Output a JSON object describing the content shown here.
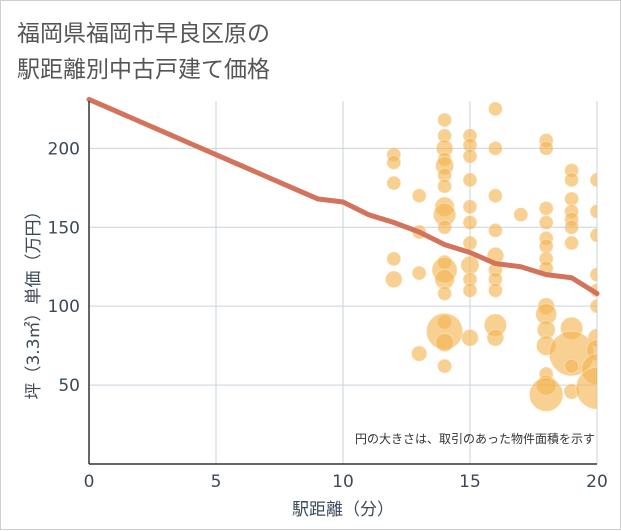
{
  "chart_data": {
    "type": "scatter",
    "title_lines": [
      "福岡県福岡市早良区原の",
      "駅距離別中古戸建て価格"
    ],
    "xlabel": "駅距離（分）",
    "ylabel": "坪（3.3㎡）単価（万円）",
    "xlim": [
      0,
      20
    ],
    "ylim": [
      0,
      230
    ],
    "x_ticks": [
      0,
      5,
      10,
      15,
      20
    ],
    "y_ticks": [
      50,
      100,
      150,
      200
    ],
    "note": "円の大きさは、取引のあった物件面積を示す",
    "colors": {
      "bubble": "#f3b34f",
      "line": "#d4735b",
      "grid": "#c9d3dc",
      "axis": "#333333"
    },
    "trend_line": {
      "x": [
        0,
        1,
        2,
        3,
        4,
        5,
        6,
        7,
        8,
        9,
        10,
        11,
        12,
        13,
        14,
        15,
        16,
        17,
        18,
        19,
        20
      ],
      "y": [
        231,
        224,
        217,
        210,
        203,
        196,
        189,
        182,
        175,
        168,
        166,
        158,
        153,
        147,
        139,
        134,
        127,
        125,
        120,
        118,
        108
      ]
    },
    "bubbles": [
      {
        "x": 12,
        "y": 196,
        "s": 1
      },
      {
        "x": 12,
        "y": 191,
        "s": 1
      },
      {
        "x": 12,
        "y": 178,
        "s": 1
      },
      {
        "x": 12,
        "y": 130,
        "s": 1
      },
      {
        "x": 12,
        "y": 117,
        "s": 1.2
      },
      {
        "x": 13,
        "y": 170,
        "s": 1
      },
      {
        "x": 13,
        "y": 147,
        "s": 1
      },
      {
        "x": 13,
        "y": 121,
        "s": 1
      },
      {
        "x": 13,
        "y": 70,
        "s": 1.1
      },
      {
        "x": 14,
        "y": 218,
        "s": 1
      },
      {
        "x": 14,
        "y": 208,
        "s": 1
      },
      {
        "x": 14,
        "y": 200,
        "s": 1.2
      },
      {
        "x": 14,
        "y": 193,
        "s": 1
      },
      {
        "x": 14,
        "y": 189,
        "s": 1.3
      },
      {
        "x": 14,
        "y": 183,
        "s": 1
      },
      {
        "x": 14,
        "y": 176,
        "s": 1
      },
      {
        "x": 14,
        "y": 163,
        "s": 1.4
      },
      {
        "x": 14,
        "y": 158,
        "s": 1.6
      },
      {
        "x": 14,
        "y": 150,
        "s": 1
      },
      {
        "x": 14,
        "y": 128,
        "s": 1
      },
      {
        "x": 14,
        "y": 123,
        "s": 1.8
      },
      {
        "x": 14,
        "y": 117,
        "s": 1.4
      },
      {
        "x": 14,
        "y": 108,
        "s": 1
      },
      {
        "x": 14,
        "y": 90,
        "s": 1
      },
      {
        "x": 14,
        "y": 84,
        "s": 2.6
      },
      {
        "x": 14,
        "y": 77,
        "s": 1.3
      },
      {
        "x": 14,
        "y": 62,
        "s": 1
      },
      {
        "x": 15,
        "y": 208,
        "s": 1
      },
      {
        "x": 15,
        "y": 202,
        "s": 1
      },
      {
        "x": 15,
        "y": 195,
        "s": 1
      },
      {
        "x": 15,
        "y": 180,
        "s": 1
      },
      {
        "x": 15,
        "y": 163,
        "s": 1
      },
      {
        "x": 15,
        "y": 153,
        "s": 1
      },
      {
        "x": 15,
        "y": 140,
        "s": 1
      },
      {
        "x": 15,
        "y": 126,
        "s": 1.3
      },
      {
        "x": 15,
        "y": 117,
        "s": 1
      },
      {
        "x": 15,
        "y": 110,
        "s": 1
      },
      {
        "x": 15,
        "y": 80,
        "s": 1.2
      },
      {
        "x": 16,
        "y": 225,
        "s": 1
      },
      {
        "x": 16,
        "y": 200,
        "s": 1
      },
      {
        "x": 16,
        "y": 170,
        "s": 1
      },
      {
        "x": 16,
        "y": 148,
        "s": 1
      },
      {
        "x": 16,
        "y": 132,
        "s": 1.2
      },
      {
        "x": 16,
        "y": 123,
        "s": 1
      },
      {
        "x": 16,
        "y": 117,
        "s": 1
      },
      {
        "x": 16,
        "y": 110,
        "s": 1
      },
      {
        "x": 16,
        "y": 88,
        "s": 1.6
      },
      {
        "x": 16,
        "y": 80,
        "s": 1.2
      },
      {
        "x": 17,
        "y": 158,
        "s": 1
      },
      {
        "x": 18,
        "y": 205,
        "s": 1
      },
      {
        "x": 18,
        "y": 200,
        "s": 1
      },
      {
        "x": 18,
        "y": 162,
        "s": 1
      },
      {
        "x": 18,
        "y": 153,
        "s": 1
      },
      {
        "x": 18,
        "y": 143,
        "s": 1
      },
      {
        "x": 18,
        "y": 138,
        "s": 1
      },
      {
        "x": 18,
        "y": 130,
        "s": 1
      },
      {
        "x": 18,
        "y": 124,
        "s": 1
      },
      {
        "x": 18,
        "y": 100,
        "s": 1.2
      },
      {
        "x": 18,
        "y": 95,
        "s": 1.5
      },
      {
        "x": 18,
        "y": 85,
        "s": 1.3
      },
      {
        "x": 18,
        "y": 75,
        "s": 1.4
      },
      {
        "x": 18,
        "y": 57,
        "s": 1
      },
      {
        "x": 18,
        "y": 50,
        "s": 1.4
      },
      {
        "x": 18,
        "y": 44,
        "s": 2.4
      },
      {
        "x": 19,
        "y": 186,
        "s": 1
      },
      {
        "x": 19,
        "y": 180,
        "s": 1
      },
      {
        "x": 19,
        "y": 168,
        "s": 1
      },
      {
        "x": 19,
        "y": 160,
        "s": 1
      },
      {
        "x": 19,
        "y": 155,
        "s": 1
      },
      {
        "x": 19,
        "y": 150,
        "s": 1
      },
      {
        "x": 19,
        "y": 140,
        "s": 1
      },
      {
        "x": 19,
        "y": 86,
        "s": 1.6
      },
      {
        "x": 19,
        "y": 70,
        "s": 3.2
      },
      {
        "x": 19,
        "y": 62,
        "s": 1
      },
      {
        "x": 19,
        "y": 46,
        "s": 1.1
      },
      {
        "x": 20,
        "y": 180,
        "s": 1
      },
      {
        "x": 20,
        "y": 160,
        "s": 1
      },
      {
        "x": 20,
        "y": 145,
        "s": 1
      },
      {
        "x": 20,
        "y": 120,
        "s": 1
      },
      {
        "x": 20,
        "y": 110,
        "s": 1
      },
      {
        "x": 20,
        "y": 100,
        "s": 1
      },
      {
        "x": 20,
        "y": 80,
        "s": 1.3
      },
      {
        "x": 20,
        "y": 72,
        "s": 1.5
      },
      {
        "x": 20,
        "y": 60,
        "s": 2.2
      },
      {
        "x": 20,
        "y": 48,
        "s": 3
      }
    ]
  }
}
